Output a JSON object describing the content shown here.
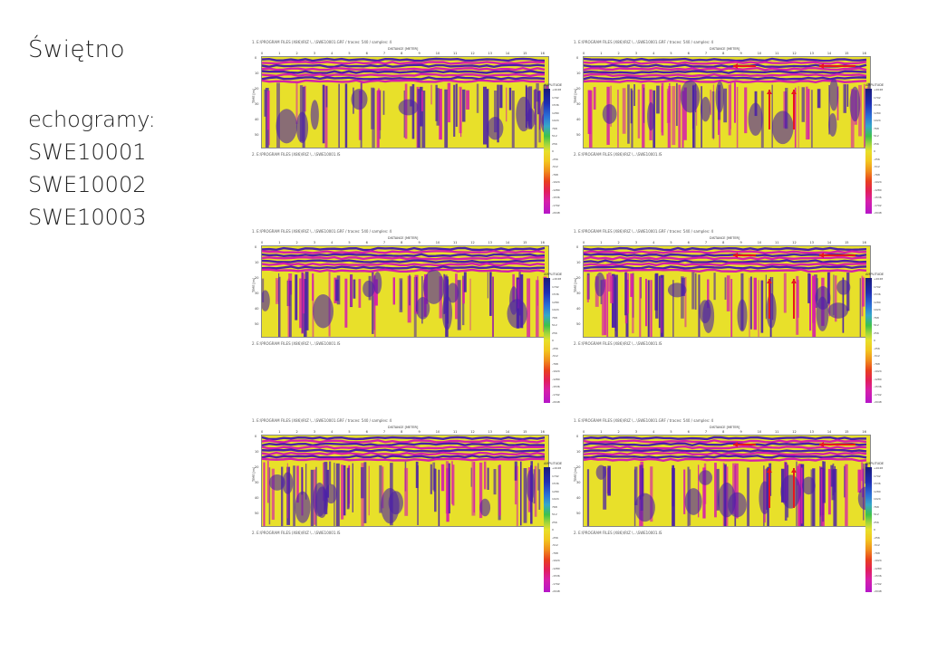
{
  "slide": {
    "title": "Świętno",
    "list_heading": "echogramy:",
    "echograms": [
      "SWE10001",
      "SWE10002",
      "SWE10003"
    ]
  },
  "panel_text": {
    "header": "1. E:\\PROGRAM FILES (X86)\\RIZ \\...\\SWE10001.GRF / traces: 540 / samples: 4",
    "footer": "2. E:\\PROGRAM FILES (X86)\\RIZ \\...\\SWE10001.IS",
    "xlabel": "DISTANCE [METER]",
    "ylabel": "TIME [ns]",
    "x_ticks": [
      "0",
      "1",
      "2",
      "3",
      "4",
      "5",
      "6",
      "7",
      "8",
      "9",
      "10",
      "11",
      "12",
      "13",
      "14",
      "15",
      "16"
    ],
    "y_ticks": [
      "0",
      "10",
      "20",
      "30",
      "40",
      "50"
    ]
  },
  "colorbar": {
    "title": "AMPLITUDE",
    "ticks": [
      "+2048",
      "1792",
      "1536",
      "1280",
      "1024",
      "768",
      "512",
      "256",
      "0",
      "-256",
      "-512",
      "-768",
      "-1024",
      "-1280",
      "-1536",
      "-1792",
      "-2048"
    ]
  },
  "colors": {
    "background": "#ffffff",
    "plot_yellow": "#e8e02a",
    "plot_purple": "#4a1fa8",
    "plot_magenta": "#d61fa8",
    "arrow_red": "#e8161e"
  }
}
